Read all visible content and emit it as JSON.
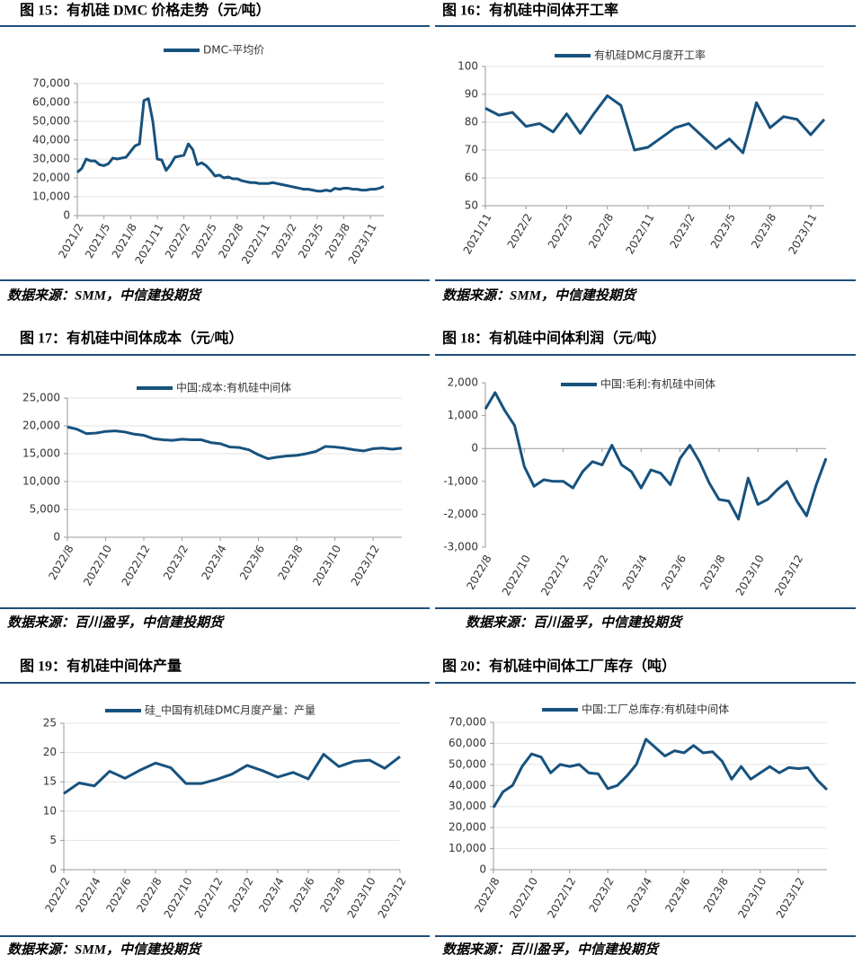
{
  "chart_data": [
    {
      "type": "line",
      "title": "图 15：有机硅 DMC 价格走势（元/吨）",
      "source": "数据来源：SMM，中信建投期货",
      "categories": [
        "2021/2",
        null,
        null,
        null,
        null,
        null,
        "2021/5",
        null,
        null,
        null,
        null,
        null,
        "2021/8",
        null,
        null,
        null,
        null,
        null,
        "2021/11",
        null,
        null,
        null,
        null,
        null,
        "2022/2",
        null,
        null,
        null,
        null,
        null,
        "2022/5",
        null,
        null,
        null,
        null,
        null,
        "2022/8",
        null,
        null,
        null,
        null,
        null,
        "2022/11",
        null,
        null,
        null,
        null,
        null,
        "2023/2",
        null,
        null,
        null,
        null,
        null,
        "2023/5",
        null,
        null,
        null,
        null,
        null,
        "2023/8",
        null,
        null,
        null,
        null,
        null,
        "2023/11",
        null,
        null,
        null
      ],
      "series": [
        {
          "name": "DMC-平均价",
          "color": "#17527e",
          "values": [
            23000,
            25000,
            30000,
            29000,
            29000,
            27000,
            26500,
            27500,
            30500,
            30000,
            30500,
            31000,
            34000,
            37000,
            38000,
            61000,
            62000,
            50000,
            30000,
            29500,
            24000,
            27000,
            31000,
            31500,
            32000,
            38000,
            35000,
            27000,
            28000,
            26500,
            24000,
            21000,
            21500,
            20000,
            20500,
            19500,
            19500,
            18500,
            18000,
            17500,
            17500,
            17000,
            17000,
            17000,
            17500,
            17000,
            16500,
            16000,
            15500,
            15000,
            14500,
            14000,
            14000,
            13500,
            13000,
            13000,
            13500,
            13000,
            14500,
            14000,
            14500,
            14500,
            14000,
            14000,
            13500,
            13500,
            14000,
            14000,
            14500,
            15500
          ]
        }
      ],
      "ylim": [
        0,
        70000
      ],
      "yticks": [
        0,
        {
          "value": 10000,
          "label": "10,000"
        },
        {
          "value": 20000,
          "label": "20,000"
        },
        {
          "value": 30000,
          "label": "30,000"
        },
        {
          "value": 40000,
          "label": "40,000"
        },
        {
          "value": 50000,
          "label": "50,000"
        },
        {
          "value": 60000,
          "label": "60,000"
        },
        {
          "value": 70000,
          "label": "70,000"
        }
      ],
      "grid": true
    },
    {
      "type": "line",
      "title": "图 16：有机硅中间体开工率",
      "source": "数据来源：SMM，中信建投期货",
      "categories": [
        "2021/11",
        null,
        null,
        "2022/2",
        null,
        null,
        "2022/5",
        null,
        null,
        "2022/8",
        null,
        null,
        "2022/11",
        null,
        null,
        "2023/2",
        null,
        null,
        "2023/5",
        null,
        null,
        "2023/8",
        null,
        null,
        "2023/11",
        null
      ],
      "series": [
        {
          "name": "有机硅DMC月度开工率",
          "color": "#17527e",
          "values": [
            85,
            82.5,
            83.5,
            78.5,
            79.5,
            76.5,
            83,
            76,
            83,
            89.5,
            86,
            70,
            71,
            74.5,
            78,
            79.5,
            75,
            70.5,
            74,
            69,
            87,
            78,
            82,
            81,
            75.5,
            81
          ]
        }
      ],
      "ylim": [
        50,
        100
      ],
      "yticks": [
        50,
        60,
        70,
        80,
        90,
        100
      ],
      "grid": true
    },
    {
      "type": "line",
      "title": "图 17：有机硅中间体成本（元/吨）",
      "source": "数据来源：百川盈孚，中信建投期货",
      "categories": [
        "2022/8",
        null,
        null,
        null,
        "2022/10",
        null,
        null,
        null,
        "2022/12",
        null,
        null,
        null,
        "2023/2",
        null,
        null,
        null,
        "2023/4",
        null,
        null,
        null,
        "2023/6",
        null,
        null,
        null,
        "2023/8",
        null,
        null,
        null,
        "2023/10",
        null,
        null,
        null,
        "2023/12",
        null,
        null,
        null
      ],
      "series": [
        {
          "name": "中国:成本:有机硅中间体",
          "color": "#17527e",
          "values": [
            19800,
            19400,
            18600,
            18700,
            19000,
            19100,
            18900,
            18500,
            18300,
            17700,
            17500,
            17400,
            17600,
            17500,
            17500,
            17000,
            16800,
            16200,
            16100,
            15700,
            14800,
            14100,
            14400,
            14600,
            14700,
            15000,
            15400,
            16300,
            16200,
            16000,
            15700,
            15500,
            15900,
            16000,
            15800,
            16000
          ]
        }
      ],
      "ylim": [
        0,
        25000
      ],
      "yticks": [
        0,
        {
          "value": 5000,
          "label": "5,000"
        },
        {
          "value": 10000,
          "label": "10,000"
        },
        {
          "value": 15000,
          "label": "15,000"
        },
        {
          "value": 20000,
          "label": "20,000"
        },
        {
          "value": 25000,
          "label": "25,000"
        }
      ],
      "grid": true
    },
    {
      "type": "line",
      "title": "图 18：有机硅中间体利润（元/吨）",
      "source": "数据来源：百川盈孚，中信建投期货",
      "categories": [
        "2022/8",
        null,
        null,
        null,
        "2022/10",
        null,
        null,
        null,
        "2022/12",
        null,
        null,
        null,
        "2023/2",
        null,
        null,
        null,
        "2023/4",
        null,
        null,
        null,
        "2023/6",
        null,
        null,
        null,
        "2023/8",
        null,
        null,
        null,
        "2023/10",
        null,
        null,
        null,
        "2023/12",
        null,
        null,
        null
      ],
      "series": [
        {
          "name": "中国:毛利:有机硅中间体",
          "color": "#17527e",
          "values": [
            1200,
            1700,
            1150,
            700,
            -550,
            -1150,
            -950,
            -1000,
            -1000,
            -1200,
            -700,
            -400,
            -500,
            100,
            -500,
            -700,
            -1200,
            -650,
            -750,
            -1100,
            -300,
            100,
            -400,
            -1050,
            -1550,
            -1600,
            -2150,
            -900,
            -1700,
            -1550,
            -1250,
            -1000,
            -1600,
            -2050,
            -1100,
            -300
          ]
        }
      ],
      "ylim": [
        -3000,
        2000
      ],
      "yticks": [
        {
          "value": -3000,
          "label": "-3,000"
        },
        {
          "value": -2000,
          "label": "-2,000"
        },
        {
          "value": -1000,
          "label": "-1,000"
        },
        0,
        {
          "value": 1000,
          "label": "1,000"
        },
        {
          "value": 2000,
          "label": "2,000"
        }
      ],
      "grid": false
    },
    {
      "type": "line",
      "title": "图 19：有机硅中间体产量",
      "source": "数据来源：SMM，中信建投期货",
      "categories": [
        "2022/2",
        null,
        "2022/4",
        null,
        "2022/6",
        null,
        "2022/8",
        null,
        "2022/10",
        null,
        "2022/12",
        null,
        "2023/2",
        null,
        "2023/4",
        null,
        "2023/6",
        null,
        "2023/8",
        null,
        "2023/10",
        null,
        "2023/12"
      ],
      "series": [
        {
          "name": "硅_中国有机硅DMC月度产量：产量",
          "color": "#17527e",
          "values": [
            13,
            14.8,
            14.3,
            16.8,
            15.6,
            17,
            18.2,
            17.4,
            14.7,
            14.7,
            15.4,
            16.3,
            17.8,
            16.9,
            15.8,
            16.6,
            15.5,
            19.7,
            17.6,
            18.5,
            18.7,
            17.3,
            19.3
          ]
        }
      ],
      "ylim": [
        0,
        25
      ],
      "yticks": [
        0,
        5,
        10,
        15,
        20,
        25
      ],
      "grid": true
    },
    {
      "type": "line",
      "title": "图 20：有机硅中间体工厂库存（吨）",
      "source": "数据来源：百川盈孚，中信建投期货",
      "categories": [
        "2022/8",
        null,
        null,
        null,
        "2022/10",
        null,
        null,
        null,
        "2022/12",
        null,
        null,
        null,
        "2023/2",
        null,
        null,
        null,
        "2023/4",
        null,
        null,
        null,
        "2023/6",
        null,
        null,
        null,
        "2023/8",
        null,
        null,
        null,
        "2023/10",
        null,
        null,
        null,
        "2023/12",
        null,
        null,
        null
      ],
      "series": [
        {
          "name": "中国:工厂总库存:有机硅中间体",
          "color": "#17527e",
          "values": [
            29500,
            37000,
            40000,
            49000,
            55000,
            53500,
            46000,
            50000,
            49000,
            50000,
            46000,
            45500,
            38500,
            40000,
            44500,
            50000,
            62000,
            58000,
            54000,
            56500,
            55500,
            59000,
            55500,
            56000,
            51500,
            43000,
            49000,
            43000,
            46000,
            49000,
            46000,
            48500,
            48000,
            48500,
            42500,
            38000
          ]
        }
      ],
      "ylim": [
        0,
        70000
      ],
      "yticks": [
        0,
        {
          "value": 10000,
          "label": "10,000"
        },
        {
          "value": 20000,
          "label": "20,000"
        },
        {
          "value": 30000,
          "label": "30,000"
        },
        {
          "value": 40000,
          "label": "40,000"
        },
        {
          "value": 50000,
          "label": "50,000"
        },
        {
          "value": 60000,
          "label": "60,000"
        },
        {
          "value": 70000,
          "label": "70,000"
        }
      ],
      "grid": true
    }
  ]
}
